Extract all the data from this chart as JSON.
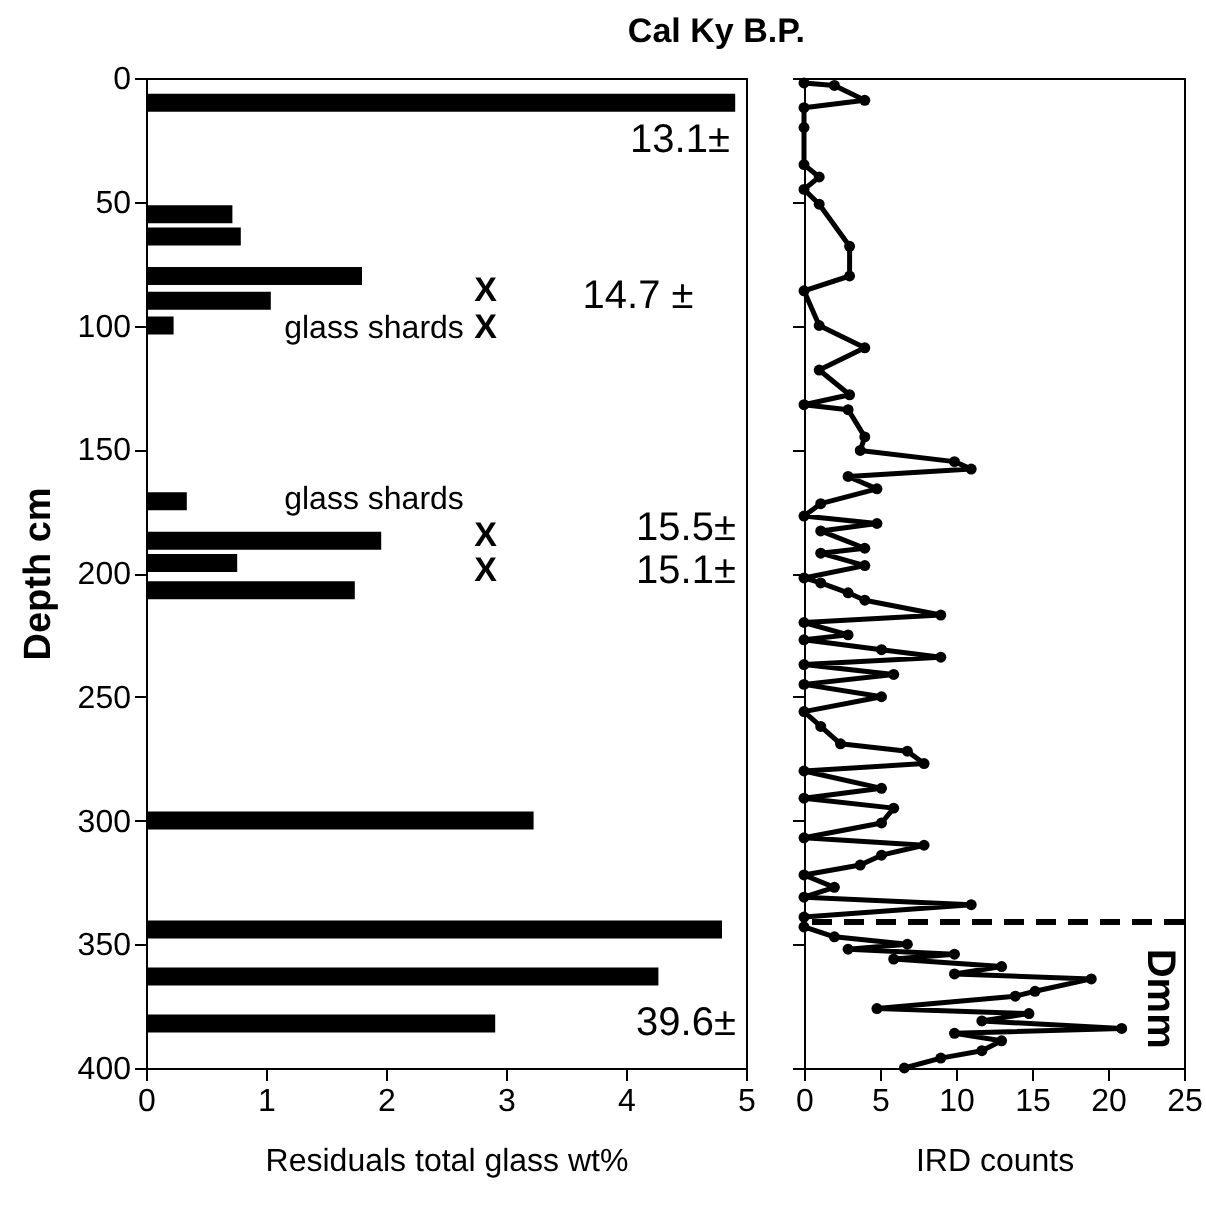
{
  "chart_data": [
    {
      "type": "bar",
      "orientation": "horizontal",
      "title": "Cal Ky B.P.",
      "xlabel": "Residuals total glass wt%",
      "ylabel": "Depth cm",
      "color": "#000000",
      "x": [
        10,
        55,
        64,
        80,
        90,
        100,
        171,
        187,
        196,
        207,
        300,
        344,
        363,
        382
      ],
      "values": [
        4.91,
        0.72,
        0.79,
        1.8,
        1.04,
        0.23,
        0.34,
        1.96,
        0.76,
        1.74,
        3.23,
        4.8,
        4.27,
        2.91
      ],
      "xlim": [
        0,
        5
      ],
      "xticks": [
        0,
        1,
        2,
        3,
        4,
        5
      ],
      "ylim": [
        400,
        0
      ],
      "yticks": [
        0,
        50,
        100,
        150,
        200,
        250,
        300,
        350,
        400
      ],
      "annotations": [
        "13.1±",
        "14.7 ±",
        "15.5±",
        "15.1±",
        "39.6±",
        "glass shards",
        "glass shards",
        "X",
        "X",
        "X",
        "X"
      ]
    },
    {
      "type": "line",
      "orientation": "horizontal",
      "xlabel": "IRD counts",
      "color": "#000000",
      "marker": "circle",
      "tick_labels": "x",
      "x": [
        2,
        3,
        9,
        12,
        20,
        35,
        40,
        45,
        51,
        68,
        80,
        86,
        100,
        109,
        118,
        128,
        132,
        134,
        145,
        150.5,
        155,
        158,
        161,
        166,
        172,
        177,
        180,
        183,
        190,
        192,
        197,
        202,
        204,
        208,
        211,
        217,
        220,
        225,
        227,
        231,
        234,
        237,
        241,
        245,
        250,
        256,
        262,
        269,
        272,
        277,
        280,
        287,
        291,
        295,
        301,
        307,
        310,
        314,
        318,
        322,
        327,
        331,
        334,
        339,
        343,
        347,
        350,
        352,
        354,
        356,
        359,
        362,
        364,
        369,
        371,
        376,
        378,
        381,
        384,
        386,
        389,
        393,
        396,
        400
      ],
      "values": [
        0,
        2,
        4,
        0,
        0,
        0,
        1,
        0,
        1,
        3,
        3,
        0,
        1,
        4,
        1,
        3,
        0,
        2.9,
        4,
        3.7,
        9.9,
        11,
        2.9,
        4.8,
        1.1,
        0,
        4.8,
        1.1,
        4,
        1.1,
        4,
        0,
        1.1,
        2.9,
        4,
        9,
        0,
        2.9,
        0,
        5.1,
        9,
        0,
        5.9,
        0,
        5.1,
        0,
        1.1,
        2.4,
        6.8,
        7.9,
        0,
        5.1,
        0,
        5.9,
        5.1,
        0,
        7.9,
        5.1,
        3.7,
        0,
        2,
        0,
        11,
        0,
        0,
        2,
        6.8,
        2.9,
        9.9,
        5.9,
        13,
        9.9,
        18.9,
        15.2,
        13.9,
        4.8,
        14.8,
        11.7,
        20.9,
        9.9,
        13,
        11.7,
        9,
        6.6
      ],
      "xlim": [
        0,
        25
      ],
      "xticks": [
        0,
        5,
        10,
        15,
        20,
        25
      ],
      "ylim": [
        400,
        0
      ],
      "yticks": [
        0,
        50,
        100,
        150,
        200,
        250,
        300,
        350,
        400
      ],
      "ref_lines": [
        {
          "axis": "y",
          "value": 341,
          "line_style": "dashed"
        }
      ],
      "annotations": [
        "Dmm"
      ]
    }
  ]
}
